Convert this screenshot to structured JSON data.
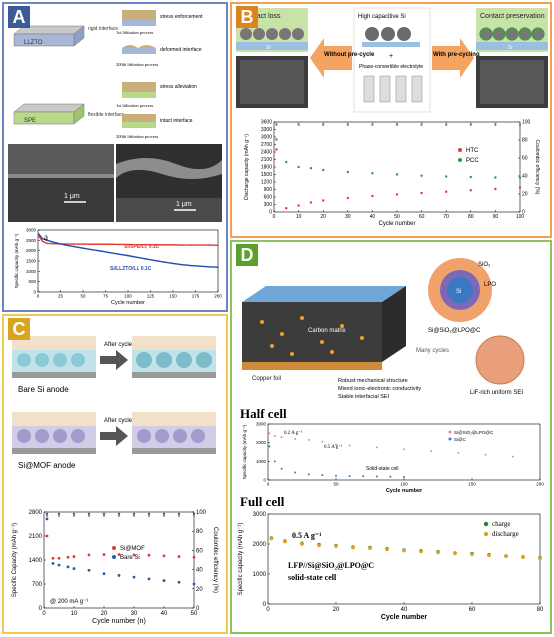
{
  "panels": {
    "A": {
      "label": "A",
      "schematic": {
        "rigid": {
          "base": "LLZTO",
          "interface": "rigid interface"
        },
        "flexible": {
          "base": "SPE",
          "interface": "flexible interface"
        },
        "rigid_steps": [
          "stress enforcement",
          "1st lithiation process",
          "deformed interface",
          "200th lithiation process"
        ],
        "flexible_steps": [
          "stress alleviation",
          "1st lithiation process",
          "intact interface",
          "200th lithiation process"
        ]
      },
      "sem_scales": [
        "1 μm",
        "1 μm"
      ],
      "sublabel": "a",
      "chart_data": {
        "type": "line",
        "ylabel": "Specific capacity (mAh g⁻¹)",
        "xlabel": "Cycle number",
        "xlim": [
          0,
          200
        ],
        "ylim": [
          0,
          3000
        ],
        "xticks": [
          0,
          25,
          50,
          75,
          100,
          125,
          150,
          175,
          200
        ],
        "yticks": [
          0,
          500,
          1000,
          1500,
          2000,
          2500,
          3000
        ],
        "series": [
          {
            "name": "Si/SPE/Li, 0.1C",
            "color": "#e53935",
            "x": [
              1,
              5,
              10,
              20,
              30,
              40,
              50,
              60,
              70,
              80,
              90,
              100,
              110,
              120,
              130,
              140,
              150,
              160,
              170,
              180,
              190,
              200
            ],
            "values": [
              2700,
              2450,
              2350,
              2330,
              2320,
              2320,
              2320,
              2310,
              2310,
              2310,
              2300,
              2300,
              2290,
              2290,
              2280,
              2280,
              2280,
              2270,
              2270,
              2270,
              2270,
              2260
            ]
          },
          {
            "name": "Si/LLZTO/Li, 0.1C",
            "color": "#1e4fb0",
            "x": [
              1,
              5,
              10,
              20,
              30,
              40,
              50,
              60,
              70,
              80,
              90,
              100,
              110,
              120,
              130,
              140,
              150,
              160,
              170,
              180,
              190,
              200
            ],
            "values": [
              2800,
              2580,
              2500,
              2380,
              2280,
              2200,
              2120,
              2050,
              1980,
              1900,
              1830,
              1760,
              1680,
              1600,
              1520,
              1450,
              1380,
              1320,
              1280,
              1250,
              1220,
              1200
            ]
          }
        ]
      }
    },
    "B": {
      "label": "B",
      "left_title": "Contact loss",
      "right_title": "Contact preservation",
      "center_title": "High capacitive Si",
      "center_plus": "+",
      "center_sub": "Phase-convertible electrolyte",
      "arrow_left": "Without pre-cycle",
      "arrow_right": "With pre-cycling",
      "si_label": "Si",
      "chart_data": {
        "type": "scatter",
        "ylabel": "Discharge capacity (mAh g⁻¹)",
        "y2label": "Coulombic efficiency (%)",
        "xlabel": "Cycle number",
        "xlim": [
          0,
          100
        ],
        "ylim": [
          0,
          3600
        ],
        "y2lim": [
          0,
          100
        ],
        "xticks": [
          0,
          10,
          20,
          30,
          40,
          50,
          60,
          70,
          80,
          90,
          100
        ],
        "yticks": [
          0,
          300,
          600,
          900,
          1200,
          1500,
          1800,
          2100,
          2400,
          2700,
          3000,
          3300,
          3600
        ],
        "y2ticks": [
          0,
          20,
          40,
          60,
          80,
          100
        ],
        "legend": [
          "HTC",
          "PCC"
        ],
        "series": [
          {
            "name": "HTC",
            "color": "#e53935",
            "x": [
              1,
              5,
              10,
              15,
              20,
              30,
              40,
              50,
              60,
              70,
              80,
              90,
              100
            ],
            "values": [
              2500,
              150,
              260,
              380,
              460,
              560,
              640,
              700,
              760,
              810,
              870,
              920,
              980
            ]
          },
          {
            "name": "PCC",
            "color": "#2e9e3c",
            "x": [
              1,
              5,
              10,
              15,
              20,
              30,
              40,
              50,
              60,
              70,
              80,
              90,
              100
            ],
            "values": [
              2900,
              2000,
              1800,
              1750,
              1680,
              1600,
              1550,
              1500,
              1450,
              1420,
              1400,
              1380,
              1370
            ]
          }
        ]
      }
    },
    "C": {
      "label": "C",
      "after_cycles": [
        "After cycles",
        "After cycles"
      ],
      "row1": "Bare Si anode",
      "row2": "Si@MOF anode",
      "rate_note": "@ 200 mA g⁻¹",
      "chart_data": {
        "type": "scatter",
        "ylabel": "Specific Capacity (mAh g⁻¹)",
        "y2label": "Coulombic efficiency (%)",
        "xlabel": "Cycle number (n)",
        "xlim": [
          0,
          50
        ],
        "ylim": [
          0,
          2800
        ],
        "y2lim": [
          0,
          100
        ],
        "xticks": [
          0,
          10,
          20,
          30,
          40,
          50
        ],
        "yticks": [
          0,
          700,
          1400,
          2100,
          2800
        ],
        "y2ticks": [
          0,
          20,
          40,
          60,
          80,
          100
        ],
        "series": [
          {
            "name": "Si@MOF",
            "color": "#e53935",
            "x": [
              1,
              3,
              5,
              8,
              10,
              15,
              20,
              25,
              30,
              35,
              40,
              45,
              50
            ],
            "values": [
              2100,
              1450,
              1450,
              1480,
              1500,
              1550,
              1560,
              1560,
              1550,
              1540,
              1520,
              1500,
              1480
            ]
          },
          {
            "name": "Bare Si",
            "color": "#1f5fa8",
            "x": [
              1,
              3,
              5,
              8,
              10,
              15,
              20,
              25,
              30,
              35,
              40,
              45,
              50
            ],
            "values": [
              2600,
              1300,
              1250,
              1200,
              1150,
              1100,
              1000,
              950,
              900,
              850,
              800,
              750,
              700
            ]
          }
        ]
      }
    },
    "D": {
      "label": "D",
      "schematic": {
        "labels": [
          "SiO₂",
          "LPO",
          "Si",
          "Si@SiO₂@LPO@C",
          "Many cycles",
          "Carbon matrix",
          "Copper foil",
          "LiF-rich uniform SEI"
        ],
        "bullets": [
          "Robust mechanical structure",
          "Mixed ionic-electronic conductivity",
          "Stable interfacial SEI"
        ]
      },
      "half_cell": {
        "title": "Half cell",
        "rate1": "0.2 A g⁻¹",
        "rate2": "0.5 A g⁻¹",
        "note": "Solid-state cell",
        "chart_data": {
          "type": "scatter",
          "ylabel": "Specific capacity (mAh g⁻¹)",
          "xlabel": "Cycle number",
          "xlim": [
            0,
            200
          ],
          "ylim": [
            0,
            3000
          ],
          "xticks": [
            0,
            50,
            100,
            150,
            200
          ],
          "yticks": [
            0,
            1000,
            2000,
            3000
          ],
          "series": [
            {
              "name": "Si@SiO₂@LPO@C",
              "color": "#f08a8a",
              "x": [
                1,
                5,
                10,
                20,
                30,
                40,
                50,
                60,
                80,
                100,
                120,
                140,
                160,
                180,
                200
              ],
              "values": [
                2500,
                2350,
                2300,
                2200,
                2150,
                2050,
                1900,
                1850,
                1750,
                1650,
                1550,
                1450,
                1350,
                1250,
                1100
              ]
            },
            {
              "name": "Si@C",
              "color": "#2f7fd0",
              "x": [
                1,
                5,
                10,
                20,
                30,
                40,
                50,
                60,
                70,
                80,
                90,
                100
              ],
              "values": [
                1800,
                1000,
                600,
                400,
                300,
                260,
                230,
                210,
                200,
                190,
                180,
                170
              ]
            }
          ]
        }
      },
      "full_cell": {
        "title": "Full cell",
        "rate": "0.5 A g⁻¹",
        "line1": "LFP//Si@SiO₂@LPO@C",
        "line2": "solid-state cell",
        "chart_data": {
          "type": "scatter",
          "ylabel": "Specific capacity (mAh g⁻¹)",
          "xlabel": "Cycle number",
          "xlim": [
            0,
            80
          ],
          "ylim": [
            0,
            3000
          ],
          "xticks": [
            0,
            20,
            40,
            60,
            80
          ],
          "yticks": [
            0,
            1000,
            2000,
            3000
          ],
          "legend": [
            "charge",
            "discharge"
          ],
          "series": [
            {
              "name": "charge",
              "color": "#2e7d32",
              "x": [
                1,
                5,
                10,
                15,
                20,
                25,
                30,
                35,
                40,
                45,
                50,
                55,
                60,
                65,
                70,
                75,
                80
              ],
              "values": [
                2200,
                2100,
                2020,
                1980,
                1950,
                1900,
                1880,
                1840,
                1800,
                1770,
                1740,
                1700,
                1680,
                1640,
                1600,
                1570,
                1540
              ]
            },
            {
              "name": "discharge",
              "color": "#e0a020",
              "x": [
                1,
                5,
                10,
                15,
                20,
                25,
                30,
                35,
                40,
                45,
                50,
                55,
                60,
                65,
                70,
                75,
                80
              ],
              "values": [
                2180,
                2080,
                2000,
                1960,
                1930,
                1880,
                1860,
                1820,
                1780,
                1750,
                1720,
                1690,
                1660,
                1620,
                1590,
                1560,
                1520
              ]
            }
          ]
        }
      }
    }
  }
}
